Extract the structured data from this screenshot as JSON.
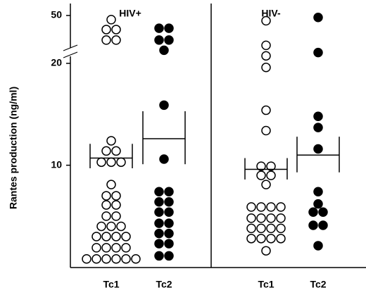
{
  "chart_data": {
    "type": "dot",
    "ylabel": "Rantes production (ng/ml)",
    "ylim": [
      0.3,
      50
    ],
    "y_break": 20,
    "yticks": [
      10,
      20,
      50
    ],
    "panels": [
      {
        "title": "HIV+",
        "groups": [
          {
            "name": "Tc1",
            "filled": false,
            "mean": 10.7,
            "se_upper": 12.1,
            "se_lower": 9.7,
            "values": [
              47.4,
              41.2,
              41.2,
              34.6,
              34.6,
              12.4,
              11.4,
              11.4,
              10.3,
              10.3,
              10.3,
              8.1,
              7.0,
              7.0,
              6.1,
              6.1,
              5.0,
              5.0,
              4.0,
              4.0,
              4.0,
              3.0,
              3.0,
              3.0,
              3.0,
              1.9,
              1.9,
              1.9,
              1.9,
              0.8,
              0.8,
              0.8,
              0.8,
              0.8,
              0.8
            ]
          },
          {
            "name": "Tc2",
            "filled": true,
            "mean": 12.6,
            "se_upper": 15.3,
            "se_lower": 10.1,
            "values": [
              42.0,
              42.0,
              34.6,
              34.6,
              28.2,
              15.9,
              10.6,
              7.4,
              7.4,
              6.4,
              6.4,
              5.4,
              5.4,
              4.3,
              4.3,
              3.3,
              3.3,
              2.3,
              2.3,
              1.1,
              1.1
            ]
          }
        ]
      },
      {
        "title": "HIV-",
        "groups": [
          {
            "name": "Tc1",
            "filled": false,
            "mean": 9.6,
            "se_upper": 10.7,
            "se_lower": 8.6,
            "values": [
              46.7,
              31.3,
              24.7,
              19.6,
              15.4,
              13.4,
              9.9,
              9.9,
              9.0,
              9.0,
              8.1,
              5.9,
              5.9,
              5.9,
              5.9,
              4.8,
              4.8,
              4.8,
              4.8,
              3.8,
              3.8,
              3.8,
              3.8,
              2.8,
              2.8,
              2.8,
              2.8,
              1.6
            ]
          },
          {
            "name": "Tc2",
            "filled": true,
            "mean": 11.0,
            "se_upper": 12.8,
            "se_lower": 9.3,
            "values": [
              48.8,
              26.8,
              14.8,
              13.7,
              11.6,
              7.4,
              6.2,
              5.4,
              5.4,
              4.1,
              4.1,
              2.1
            ]
          }
        ]
      }
    ]
  }
}
